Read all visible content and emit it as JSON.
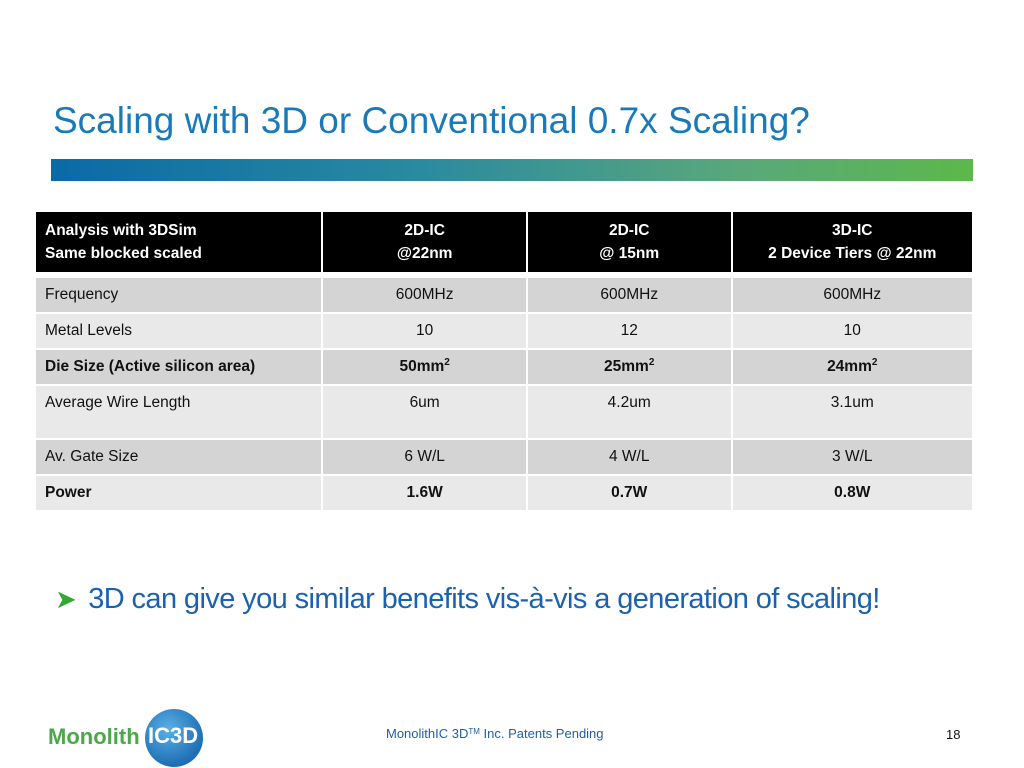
{
  "slide": {
    "title": "Scaling with 3D or Conventional 0.7x Scaling?"
  },
  "table": {
    "header": {
      "col1_line1": "Analysis with 3DSim",
      "col1_line2": "Same blocked scaled",
      "col2_line1": "2D-IC",
      "col2_line2": "@22nm",
      "col3_line1": "2D-IC",
      "col3_line2": "@ 15nm",
      "col4_line1": "3D-IC",
      "col4_line2": "2 Device Tiers @ 22nm"
    },
    "rows": [
      {
        "label": "Frequency",
        "v1": "600MHz",
        "v2": "600MHz",
        "v3": "600MHz"
      },
      {
        "label": "Metal Levels",
        "v1": "10",
        "v2": "12",
        "v3": "10"
      },
      {
        "label": "Die Size (Active silicon area)",
        "v1": "50mm",
        "v2": "25mm",
        "v3": "24mm",
        "sup": "2"
      },
      {
        "label": "Average Wire Length",
        "v1": "6um",
        "v2": "4.2um",
        "v3": "3.1um"
      },
      {
        "label": "Av. Gate Size",
        "v1": "6 W/L",
        "v2": "4 W/L",
        "v3": "3 W/L"
      },
      {
        "label": "Power",
        "v1": "1.6W",
        "v2": "0.7W",
        "v3": "0.8W"
      }
    ]
  },
  "bullet": {
    "text": "3D can give you similar benefits vis-à-vis a generation of scaling!"
  },
  "footer": {
    "company": "MonolithIC 3D",
    "tm": "TM",
    "suffix": " Inc. Patents Pending",
    "page_number": "18"
  },
  "logo": {
    "text_left": "Monolith",
    "text_right": "IC3D"
  },
  "colors": {
    "title": "#1a7ab8",
    "bullet": "#1a62b0",
    "arrow": "#33a832",
    "header_bg": "#000000"
  }
}
